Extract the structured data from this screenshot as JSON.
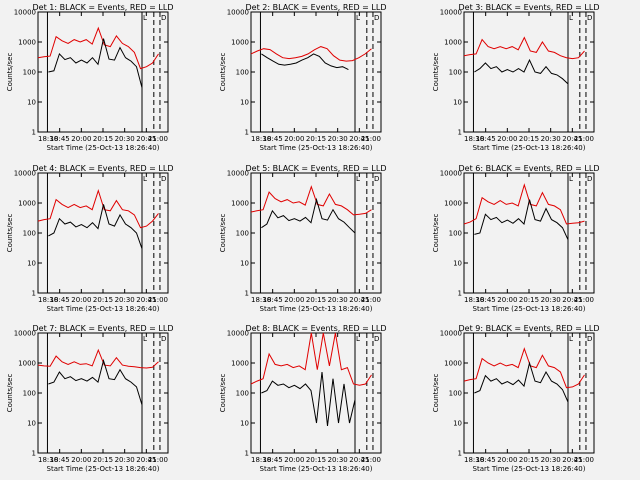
{
  "chart_data": [
    {
      "type": "line",
      "id": "det1",
      "title": "Det 1: BLACK = Events, RED = LLD",
      "xlabel": "Start Time (25-Oct-13 18:26:40)",
      "ylabel": "Counts/sec",
      "xlim": [
        18.5,
        21.25
      ],
      "ylim": [
        1,
        10000
      ],
      "yscale": "log",
      "x_ticks": [
        "18:30",
        "18:45",
        "20:00",
        "20:15",
        "20:30",
        "20:45",
        "21:00"
      ],
      "y_ticks": [
        "1",
        "10",
        "100",
        "1000",
        "10000"
      ],
      "markers": {
        "solid": [
          18.7,
          20.7
        ],
        "dashed": [
          20.95,
          21.08
        ],
        "labels": [
          "L",
          "D"
        ]
      },
      "series": [
        {
          "name": "LLD",
          "color": "#e00000",
          "start": 18.5,
          "values": [
            300,
            320,
            340,
            1500,
            1100,
            900,
            1200,
            1000,
            1200,
            850,
            2900,
            800,
            700,
            1600,
            900,
            700,
            450,
            130,
            150,
            200,
            400
          ]
        },
        {
          "name": "Events",
          "color": "#000000",
          "start": 18.72,
          "values": [
            100,
            110,
            400,
            260,
            300,
            200,
            250,
            200,
            300,
            180,
            1300,
            270,
            250,
            650,
            300,
            230,
            150,
            30
          ]
        }
      ]
    },
    {
      "type": "line",
      "id": "det2",
      "title": "Det 2: BLACK = Events, RED = LLD",
      "xlabel": "Start Time (25-Oct-13 18:26:40)",
      "ylabel": "Counts/sec",
      "xlim": [
        18.5,
        21.25
      ],
      "ylim": [
        1,
        10000
      ],
      "yscale": "log",
      "x_ticks": [
        "18:30",
        "18:45",
        "20:00",
        "20:15",
        "20:30",
        "20:45",
        "21:00"
      ],
      "y_ticks": [
        "1",
        "10",
        "100",
        "1000",
        "10000"
      ],
      "markers": {
        "solid": [
          18.7,
          20.7
        ],
        "dashed": [
          20.95,
          21.08
        ],
        "labels": [
          "L",
          "D"
        ]
      },
      "series": [
        {
          "name": "LLD",
          "color": "#e00000",
          "start": 18.5,
          "values": [
            400,
            500,
            600,
            560,
            400,
            300,
            280,
            300,
            330,
            400,
            550,
            700,
            600,
            350,
            250,
            230,
            240,
            300,
            400,
            600
          ]
        },
        {
          "name": "Events",
          "color": "#000000",
          "start": 18.72,
          "values": [
            400,
            300,
            230,
            180,
            170,
            180,
            200,
            250,
            300,
            400,
            330,
            200,
            160,
            140,
            150,
            120
          ]
        }
      ]
    },
    {
      "type": "line",
      "id": "det3",
      "title": "Det 3: BLACK = Events, RED = LLD",
      "xlabel": "Start Time (25-Oct-13 18:26:40)",
      "ylabel": "Counts/sec",
      "xlim": [
        18.5,
        21.25
      ],
      "ylim": [
        1,
        10000
      ],
      "yscale": "log",
      "x_ticks": [
        "18:30",
        "18:45",
        "20:00",
        "20:15",
        "20:30",
        "20:45",
        "21:00"
      ],
      "y_ticks": [
        "1",
        "10",
        "100",
        "1000",
        "10000"
      ],
      "markers": {
        "solid": [
          18.7,
          20.7
        ],
        "dashed": [
          20.95,
          21.08
        ],
        "labels": [
          "L",
          "D"
        ]
      },
      "series": [
        {
          "name": "LLD",
          "color": "#e00000",
          "start": 18.5,
          "values": [
            350,
            380,
            400,
            1200,
            700,
            600,
            700,
            600,
            700,
            550,
            1400,
            500,
            450,
            1000,
            500,
            450,
            350,
            300,
            280,
            300,
            500
          ]
        },
        {
          "name": "Events",
          "color": "#000000",
          "start": 18.72,
          "values": [
            100,
            130,
            200,
            130,
            150,
            100,
            120,
            100,
            130,
            100,
            250,
            100,
            90,
            150,
            90,
            80,
            60,
            40
          ]
        }
      ]
    },
    {
      "type": "line",
      "id": "det4",
      "title": "Det 4: BLACK = Events, RED = LLD",
      "xlabel": "Start Time (25-Oct-13 18:26:40)",
      "ylabel": "Counts/sec",
      "xlim": [
        18.5,
        21.25
      ],
      "ylim": [
        1,
        10000
      ],
      "yscale": "log",
      "x_ticks": [
        "18:30",
        "18:45",
        "20:00",
        "20:15",
        "20:30",
        "20:45",
        "21:00"
      ],
      "y_ticks": [
        "1",
        "10",
        "100",
        "1000",
        "10000"
      ],
      "markers": {
        "solid": [
          18.7,
          20.7
        ],
        "dashed": [
          20.95,
          21.08
        ],
        "labels": [
          "L",
          "D"
        ]
      },
      "series": [
        {
          "name": "LLD",
          "color": "#e00000",
          "start": 18.5,
          "values": [
            250,
            280,
            300,
            1300,
            900,
            700,
            900,
            700,
            800,
            600,
            2600,
            600,
            550,
            1200,
            600,
            550,
            400,
            150,
            170,
            250,
            450
          ]
        },
        {
          "name": "Events",
          "color": "#000000",
          "start": 18.72,
          "values": [
            80,
            100,
            300,
            200,
            230,
            160,
            190,
            150,
            220,
            140,
            900,
            200,
            170,
            400,
            200,
            150,
            100,
            30
          ]
        }
      ]
    },
    {
      "type": "line",
      "id": "det5",
      "title": "Det 5: BLACK = Events, RED = LLD",
      "xlabel": "Start Time (25-Oct-13 18:26:40)",
      "ylabel": "Counts/sec",
      "xlim": [
        18.5,
        21.25
      ],
      "ylim": [
        1,
        10000
      ],
      "yscale": "log",
      "x_ticks": [
        "18:30",
        "18:45",
        "20:00",
        "20:15",
        "20:30",
        "20:45",
        "21:00"
      ],
      "y_ticks": [
        "1",
        "10",
        "100",
        "1000",
        "10000"
      ],
      "markers": {
        "solid": [
          18.7,
          20.7
        ],
        "dashed": [
          20.95,
          21.08
        ],
        "labels": [
          "L",
          "D"
        ]
      },
      "series": [
        {
          "name": "LLD",
          "color": "#e00000",
          "start": 18.5,
          "values": [
            500,
            550,
            600,
            2300,
            1400,
            1100,
            1300,
            1000,
            1100,
            850,
            3500,
            900,
            800,
            2000,
            900,
            800,
            600,
            400,
            420,
            450,
            600
          ]
        },
        {
          "name": "Events",
          "color": "#000000",
          "start": 18.72,
          "values": [
            150,
            200,
            550,
            320,
            380,
            260,
            300,
            250,
            330,
            220,
            1300,
            300,
            270,
            600,
            300,
            230,
            150,
            100
          ]
        }
      ]
    },
    {
      "type": "line",
      "id": "det6",
      "title": "Det 6: BLACK = Events, RED = LLD",
      "xlabel": "Start Time (25-Oct-13 18:26:40)",
      "ylabel": "Counts/sec",
      "xlim": [
        18.5,
        21.25
      ],
      "ylim": [
        1,
        10000
      ],
      "yscale": "log",
      "x_ticks": [
        "18:30",
        "18:45",
        "20:00",
        "20:15",
        "20:30",
        "20:45",
        "21:00"
      ],
      "y_ticks": [
        "1",
        "10",
        "100",
        "1000",
        "10000"
      ],
      "markers": {
        "solid": [
          18.7,
          20.7
        ],
        "dashed": [
          20.95,
          21.08
        ],
        "labels": [
          "L",
          "D"
        ]
      },
      "series": [
        {
          "name": "LLD",
          "color": "#e00000",
          "start": 18.5,
          "values": [
            200,
            230,
            300,
            1500,
            1100,
            900,
            1200,
            900,
            1000,
            800,
            4000,
            900,
            800,
            2200,
            900,
            800,
            600,
            200,
            210,
            220,
            250
          ]
        },
        {
          "name": "Events",
          "color": "#000000",
          "start": 18.72,
          "values": [
            90,
            100,
            420,
            280,
            330,
            220,
            270,
            210,
            300,
            200,
            1300,
            280,
            250,
            650,
            280,
            220,
            150,
            60
          ]
        }
      ]
    },
    {
      "type": "line",
      "id": "det7",
      "title": "Det 7: BLACK = Events, RED = LLD",
      "xlabel": "Start Time (25-Oct-13 18:26:40)",
      "ylabel": "Counts/sec",
      "xlim": [
        18.5,
        21.25
      ],
      "ylim": [
        1,
        10000
      ],
      "yscale": "log",
      "x_ticks": [
        "18:30",
        "18:45",
        "20:00",
        "20:15",
        "20:30",
        "20:45",
        "21:00"
      ],
      "y_ticks": [
        "1",
        "10",
        "100",
        "1000",
        "10000"
      ],
      "markers": {
        "solid": [
          18.7,
          20.7
        ],
        "dashed": [
          20.95,
          21.08
        ],
        "labels": [
          "L",
          "D"
        ]
      },
      "series": [
        {
          "name": "LLD",
          "color": "#e00000",
          "start": 18.5,
          "values": [
            850,
            800,
            780,
            1700,
            1100,
            900,
            1100,
            900,
            950,
            800,
            2700,
            850,
            800,
            1500,
            850,
            780,
            750,
            700,
            680,
            720,
            1100
          ]
        },
        {
          "name": "Events",
          "color": "#000000",
          "start": 18.72,
          "values": [
            200,
            230,
            500,
            300,
            350,
            260,
            300,
            250,
            330,
            230,
            1200,
            300,
            280,
            600,
            300,
            230,
            160,
            40
          ]
        }
      ]
    },
    {
      "type": "line",
      "id": "det8",
      "title": "Det 8: BLACK = Events, RED = LLD",
      "xlabel": "Start Time (25-Oct-13 18:26:40)",
      "ylabel": "Counts/sec",
      "xlim": [
        18.5,
        21.25
      ],
      "ylim": [
        1,
        10000
      ],
      "yscale": "log",
      "x_ticks": [
        "18:30",
        "18:45",
        "20:00",
        "20:15",
        "20:30",
        "20:45",
        "21:00"
      ],
      "y_ticks": [
        "1",
        "10",
        "100",
        "1000",
        "10000"
      ],
      "markers": {
        "solid": [
          18.7,
          20.7
        ],
        "dashed": [
          20.95,
          21.08
        ],
        "labels": [
          "L",
          "D"
        ]
      },
      "series": [
        {
          "name": "LLD",
          "color": "#e00000",
          "start": 18.5,
          "values": [
            200,
            250,
            300,
            2000,
            900,
            800,
            900,
            700,
            800,
            600,
            10000,
            600,
            10000,
            800,
            10000,
            600,
            700,
            200,
            180,
            200,
            400
          ]
        },
        {
          "name": "Events",
          "color": "#000000",
          "start": 18.72,
          "values": [
            100,
            120,
            250,
            180,
            200,
            150,
            180,
            140,
            200,
            120,
            10,
            500,
            8,
            300,
            10,
            200,
            10,
            60
          ]
        }
      ]
    },
    {
      "type": "line",
      "id": "det9",
      "title": "Det 9: BLACK = Events, RED = LLD",
      "xlabel": "Start Time (25-Oct-13 18:26:40)",
      "ylabel": "Counts/sec",
      "xlim": [
        18.5,
        21.25
      ],
      "ylim": [
        1,
        10000
      ],
      "yscale": "log",
      "x_ticks": [
        "18:30",
        "18:45",
        "20:00",
        "20:15",
        "20:30",
        "20:45",
        "21:00"
      ],
      "y_ticks": [
        "1",
        "10",
        "100",
        "1000",
        "10000"
      ],
      "markers": {
        "solid": [
          18.7,
          20.7
        ],
        "dashed": [
          20.95,
          21.08
        ],
        "labels": [
          "L",
          "D"
        ]
      },
      "series": [
        {
          "name": "LLD",
          "color": "#e00000",
          "start": 18.5,
          "values": [
            250,
            280,
            300,
            1400,
            1000,
            800,
            1000,
            800,
            900,
            700,
            3000,
            800,
            700,
            1800,
            800,
            700,
            500,
            150,
            160,
            200,
            400
          ]
        },
        {
          "name": "Events",
          "color": "#000000",
          "start": 18.72,
          "values": [
            100,
            120,
            380,
            250,
            300,
            200,
            240,
            190,
            270,
            170,
            1000,
            250,
            220,
            500,
            250,
            200,
            130,
            50
          ]
        }
      ]
    }
  ]
}
